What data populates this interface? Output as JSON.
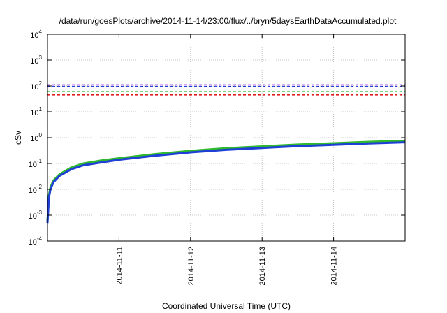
{
  "chart_data": {
    "type": "line",
    "title": "/data/run/goesPlots/archive/2014-11-14/23:00/flux/../bryn/5daysEarthDataAccumulated.plot",
    "xlabel": "Coordinated Universal Time (UTC)",
    "ylabel": "cSv",
    "y_scale": "log",
    "ylim": [
      "1e-4",
      "1e4"
    ],
    "y_ticks": [
      {
        "base": "10",
        "exp": "-4"
      },
      {
        "base": "10",
        "exp": "-3"
      },
      {
        "base": "10",
        "exp": "-2"
      },
      {
        "base": "10",
        "exp": "-1"
      },
      {
        "base": "10",
        "exp": "0"
      },
      {
        "base": "10",
        "exp": "1"
      },
      {
        "base": "10",
        "exp": "2"
      },
      {
        "base": "10",
        "exp": "3"
      },
      {
        "base": "10",
        "exp": "4"
      }
    ],
    "xlim": [
      "2014-11-10T00:00",
      "2014-11-15T00:00"
    ],
    "x_ticks": [
      "2014-11-11",
      "2014-11-12",
      "2014-11-13",
      "2014-11-14"
    ],
    "grid": true,
    "legend": "none",
    "series": [
      {
        "color": "#2db82d",
        "style": "solid",
        "x": [
          "2014-11-10T00:00",
          "2014-11-10T00:30",
          "2014-11-10T01:00",
          "2014-11-10T02:00",
          "2014-11-10T04:00",
          "2014-11-10T08:00",
          "2014-11-10T12:00",
          "2014-11-10T18:00",
          "2014-11-11T00:00",
          "2014-11-11T12:00",
          "2014-11-12T00:00",
          "2014-11-12T12:00",
          "2014-11-13T00:00",
          "2014-11-13T12:00",
          "2014-11-14T00:00",
          "2014-11-14T12:00",
          "2014-11-15T00:00"
        ],
        "y": [
          0.0006,
          0.006,
          0.012,
          0.022,
          0.038,
          0.07,
          0.1,
          0.13,
          0.16,
          0.23,
          0.31,
          0.39,
          0.46,
          0.54,
          0.61,
          0.69,
          0.76
        ]
      },
      {
        "color": "#1f3fd6",
        "style": "solid",
        "x": [
          "2014-11-10T00:00",
          "2014-11-10T00:30",
          "2014-11-10T01:00",
          "2014-11-10T02:00",
          "2014-11-10T04:00",
          "2014-11-10T08:00",
          "2014-11-10T12:00",
          "2014-11-10T18:00",
          "2014-11-11T00:00",
          "2014-11-11T12:00",
          "2014-11-12T00:00",
          "2014-11-12T12:00",
          "2014-11-13T00:00",
          "2014-11-13T12:00",
          "2014-11-14T00:00",
          "2014-11-14T12:00",
          "2014-11-15T00:00"
        ],
        "y": [
          0.0005,
          0.005,
          0.01,
          0.019,
          0.033,
          0.06,
          0.085,
          0.11,
          0.14,
          0.2,
          0.27,
          0.34,
          0.4,
          0.47,
          0.53,
          0.6,
          0.66
        ]
      },
      {
        "color": "#1f3fd6",
        "style": "dashed",
        "y_const": 95
      },
      {
        "color": "#8a2be2",
        "style": "dashed",
        "y_const": 110
      },
      {
        "color": "#2db82d",
        "style": "dashed",
        "y_const": 60
      },
      {
        "color": "#e02020",
        "style": "dashed",
        "y_const": 45
      }
    ]
  }
}
